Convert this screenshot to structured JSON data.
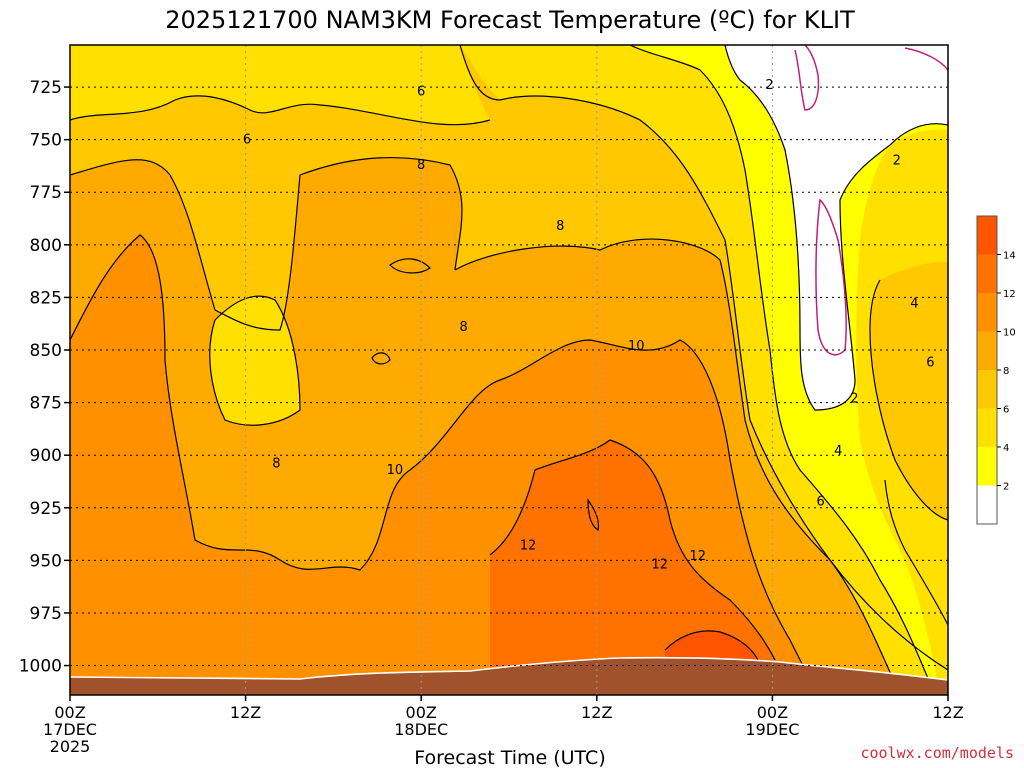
{
  "chart_data": {
    "type": "heatmap",
    "title": "2025121700 NAM3KM Forecast Temperature (ºC) for KLIT",
    "xlabel": "Forecast Time (UTC)",
    "ylabel": "",
    "x_ticks": [
      {
        "hours": 0,
        "lines": [
          "00Z",
          "17DEC",
          "2025"
        ]
      },
      {
        "hours": 12,
        "lines": [
          "12Z"
        ]
      },
      {
        "hours": 24,
        "lines": [
          "00Z",
          "18DEC"
        ]
      },
      {
        "hours": 36,
        "lines": [
          "12Z"
        ]
      },
      {
        "hours": 48,
        "lines": [
          "00Z",
          "19DEC"
        ]
      },
      {
        "hours": 60,
        "lines": [
          "12Z"
        ]
      }
    ],
    "xlim": [
      0,
      60
    ],
    "y_ticks": [
      725,
      750,
      775,
      800,
      825,
      850,
      875,
      900,
      925,
      950,
      975,
      1000
    ],
    "ylim": [
      1014,
      705
    ],
    "y_axis_inverted": true,
    "contour_levels": [
      2,
      4,
      6,
      8,
      10,
      12,
      14
    ],
    "colorbar_labels": [
      "2",
      "4",
      "6",
      "8",
      "10",
      "12",
      "14"
    ],
    "colorbar_colors": [
      "#ffffff",
      "#ffff00",
      "#ffe000",
      "#ffc800",
      "#ffaa00",
      "#ff9000",
      "#ff7200",
      "#ff5500"
    ],
    "contour_labels": [
      {
        "text": "6",
        "x": 24.0,
        "y": 727
      },
      {
        "text": "2",
        "x": 47.8,
        "y": 724
      },
      {
        "text": "6",
        "x": 12.1,
        "y": 750
      },
      {
        "text": "2",
        "x": 56.5,
        "y": 760
      },
      {
        "text": "8",
        "x": 24.0,
        "y": 762
      },
      {
        "text": "8",
        "x": 33.5,
        "y": 791
      },
      {
        "text": "4",
        "x": 57.7,
        "y": 828
      },
      {
        "text": "8",
        "x": 26.9,
        "y": 839
      },
      {
        "text": "10",
        "x": 38.7,
        "y": 848
      },
      {
        "text": "6",
        "x": 58.8,
        "y": 856
      },
      {
        "text": "2",
        "x": 53.6,
        "y": 873
      },
      {
        "text": "4",
        "x": 52.5,
        "y": 898
      },
      {
        "text": "8",
        "x": 14.1,
        "y": 904
      },
      {
        "text": "10",
        "x": 22.2,
        "y": 907
      },
      {
        "text": "6",
        "x": 51.3,
        "y": 922
      },
      {
        "text": "12",
        "x": 31.3,
        "y": 943
      },
      {
        "text": "12",
        "x": 42.9,
        "y": 948
      },
      {
        "text": "12",
        "x": 40.3,
        "y": 952
      }
    ],
    "temperature_regions": [
      {
        "value_range": [
          8,
          10
        ],
        "description": "warm layer across most of the column"
      },
      {
        "value_range": [
          12,
          14
        ],
        "description": "near-surface warm core around 18DEC 12Z to 19DEC 00Z"
      },
      {
        "value_range": [
          0,
          2
        ],
        "description": "cold pocket aloft after 19DEC 00Z"
      }
    ],
    "grid": true,
    "legend": "colorbar-right",
    "credit": "coolwx.com/models"
  }
}
